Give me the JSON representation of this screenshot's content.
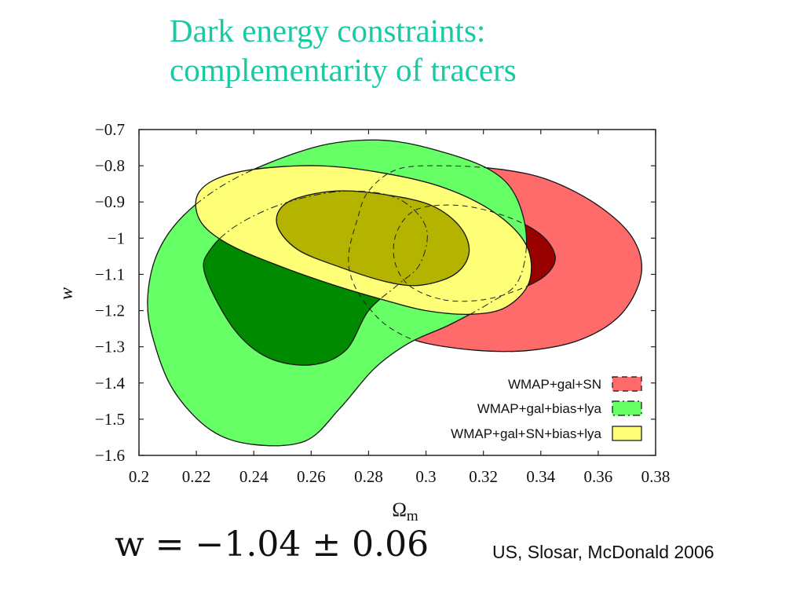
{
  "title_lines": [
    "Dark energy constraints:",
    "complementarity of tracers"
  ],
  "result": "w = −1.04 ± 0.06",
  "citation": "US, Slosar, McDonald 2006",
  "colors": {
    "title": "#19c9a3",
    "red_outer": "#ff6b6b",
    "red_inner": "#990000",
    "green_outer": "#66ff66",
    "green_inner": "#008a00",
    "yellow_outer": "#ffff77",
    "yellow_inner": "#b4b400"
  },
  "chart_data": {
    "type": "contour",
    "xlabel": "Ωm",
    "ylabel": "w",
    "xlim": [
      0.2,
      0.38
    ],
    "ylim": [
      -1.6,
      -0.7
    ],
    "xticks": [
      "0.2",
      "0.22",
      "0.24",
      "0.26",
      "0.28",
      "0.3",
      "0.32",
      "0.34",
      "0.36",
      "0.38"
    ],
    "yticks": [
      "−0.7",
      "−0.8",
      "−0.9",
      "−1",
      "−1.1",
      "−1.2",
      "−1.3",
      "−1.4",
      "−1.5",
      "−1.6"
    ],
    "grid": false,
    "legend_position": "bottom-right",
    "series": [
      {
        "name": "WMAP+gal+SN",
        "color": "#ff6b6b",
        "outer": [
          [
            0.3,
            -1.29
          ],
          [
            0.318,
            -1.31
          ],
          [
            0.336,
            -1.31
          ],
          [
            0.354,
            -1.28
          ],
          [
            0.368,
            -1.21
          ],
          [
            0.375,
            -1.1
          ],
          [
            0.372,
            -1.0
          ],
          [
            0.36,
            -0.91
          ],
          [
            0.343,
            -0.84
          ],
          [
            0.326,
            -0.81
          ],
          [
            0.306,
            -0.8
          ],
          [
            0.29,
            -0.81
          ],
          [
            0.28,
            -0.87
          ],
          [
            0.276,
            -0.95
          ],
          [
            0.273,
            -1.05
          ],
          [
            0.275,
            -1.13
          ],
          [
            0.282,
            -1.21
          ],
          [
            0.29,
            -1.26
          ]
        ],
        "inner": [
          [
            0.306,
            -1.17
          ],
          [
            0.32,
            -1.17
          ],
          [
            0.333,
            -1.14
          ],
          [
            0.342,
            -1.1
          ],
          [
            0.345,
            -1.05
          ],
          [
            0.34,
            -0.99
          ],
          [
            0.328,
            -0.94
          ],
          [
            0.312,
            -0.91
          ],
          [
            0.297,
            -0.92
          ],
          [
            0.29,
            -0.98
          ],
          [
            0.289,
            -1.06
          ],
          [
            0.294,
            -1.13
          ]
        ]
      },
      {
        "name": "WMAP+gal+bias+lya",
        "color": "#66ff66",
        "outer": [
          [
            0.205,
            -1.28
          ],
          [
            0.212,
            -1.42
          ],
          [
            0.225,
            -1.53
          ],
          [
            0.24,
            -1.57
          ],
          [
            0.258,
            -1.56
          ],
          [
            0.27,
            -1.47
          ],
          [
            0.282,
            -1.36
          ],
          [
            0.294,
            -1.29
          ],
          [
            0.308,
            -1.24
          ],
          [
            0.322,
            -1.18
          ],
          [
            0.332,
            -1.12
          ],
          [
            0.335,
            -1.0
          ],
          [
            0.331,
            -0.88
          ],
          [
            0.322,
            -0.81
          ],
          [
            0.305,
            -0.76
          ],
          [
            0.286,
            -0.73
          ],
          [
            0.266,
            -0.74
          ],
          [
            0.246,
            -0.79
          ],
          [
            0.228,
            -0.86
          ],
          [
            0.214,
            -0.95
          ],
          [
            0.206,
            -1.05
          ],
          [
            0.203,
            -1.17
          ]
        ],
        "inner": [
          [
            0.223,
            -1.1
          ],
          [
            0.233,
            -1.25
          ],
          [
            0.245,
            -1.33
          ],
          [
            0.26,
            -1.35
          ],
          [
            0.272,
            -1.31
          ],
          [
            0.28,
            -1.2
          ],
          [
            0.29,
            -1.13
          ],
          [
            0.298,
            -1.07
          ],
          [
            0.3,
            -0.97
          ],
          [
            0.29,
            -0.89
          ],
          [
            0.272,
            -0.87
          ],
          [
            0.252,
            -0.9
          ],
          [
            0.235,
            -0.96
          ],
          [
            0.225,
            -1.03
          ]
        ]
      },
      {
        "name": "WMAP+gal+SN+bias+lya",
        "color": "#ffff77",
        "outer": [
          [
            0.22,
            -0.89
          ],
          [
            0.222,
            -0.96
          ],
          [
            0.232,
            -1.02
          ],
          [
            0.25,
            -1.08
          ],
          [
            0.268,
            -1.13
          ],
          [
            0.285,
            -1.17
          ],
          [
            0.3,
            -1.2
          ],
          [
            0.316,
            -1.21
          ],
          [
            0.328,
            -1.19
          ],
          [
            0.336,
            -1.12
          ],
          [
            0.335,
            -1.02
          ],
          [
            0.324,
            -0.93
          ],
          [
            0.306,
            -0.86
          ],
          [
            0.285,
            -0.82
          ],
          [
            0.263,
            -0.8
          ],
          [
            0.24,
            -0.81
          ],
          [
            0.226,
            -0.84
          ]
        ],
        "inner": [
          [
            0.248,
            -0.96
          ],
          [
            0.255,
            -1.03
          ],
          [
            0.27,
            -1.08
          ],
          [
            0.286,
            -1.12
          ],
          [
            0.298,
            -1.13
          ],
          [
            0.31,
            -1.1
          ],
          [
            0.315,
            -1.04
          ],
          [
            0.312,
            -0.97
          ],
          [
            0.302,
            -0.91
          ],
          [
            0.286,
            -0.88
          ],
          [
            0.268,
            -0.87
          ],
          [
            0.252,
            -0.9
          ]
        ]
      }
    ]
  }
}
